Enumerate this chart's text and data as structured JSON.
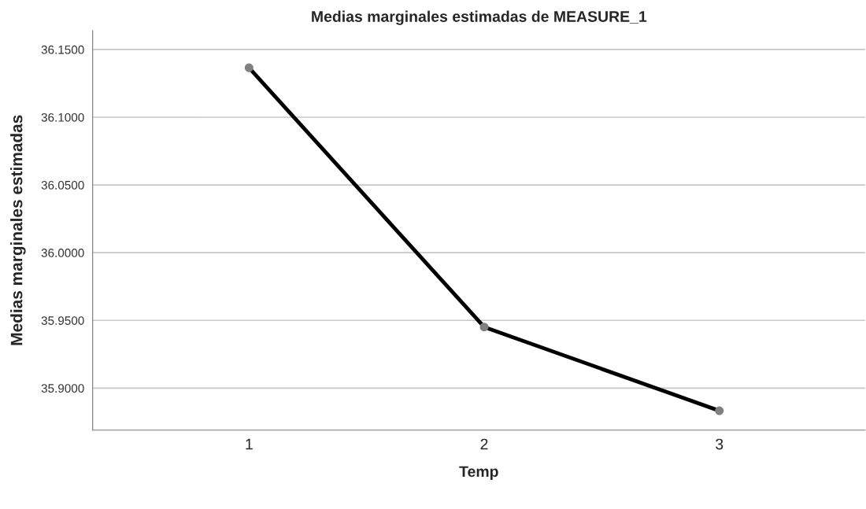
{
  "chart_data": {
    "type": "line",
    "title": "Medias marginales estimadas de MEASURE_1",
    "xlabel": "Temp",
    "ylabel": "Medias marginales estimadas",
    "categories": [
      "1",
      "2",
      "3"
    ],
    "series": [
      {
        "color": "#000000",
        "values": [
          36.1365,
          35.9451,
          35.8833
        ]
      }
    ],
    "ylim": [
      35.869,
      36.164
    ],
    "yticks": [
      {
        "value": 35.9,
        "label": "35.9000"
      },
      {
        "value": 35.95,
        "label": "35.9500"
      },
      {
        "value": 36.0,
        "label": "36.0000"
      },
      {
        "value": 36.05,
        "label": "36.0500"
      },
      {
        "value": 36.1,
        "label": "36.1000"
      },
      {
        "value": 36.15,
        "label": "36.1500"
      }
    ],
    "grid": "y",
    "marker": "circle",
    "line_style": "solid"
  }
}
